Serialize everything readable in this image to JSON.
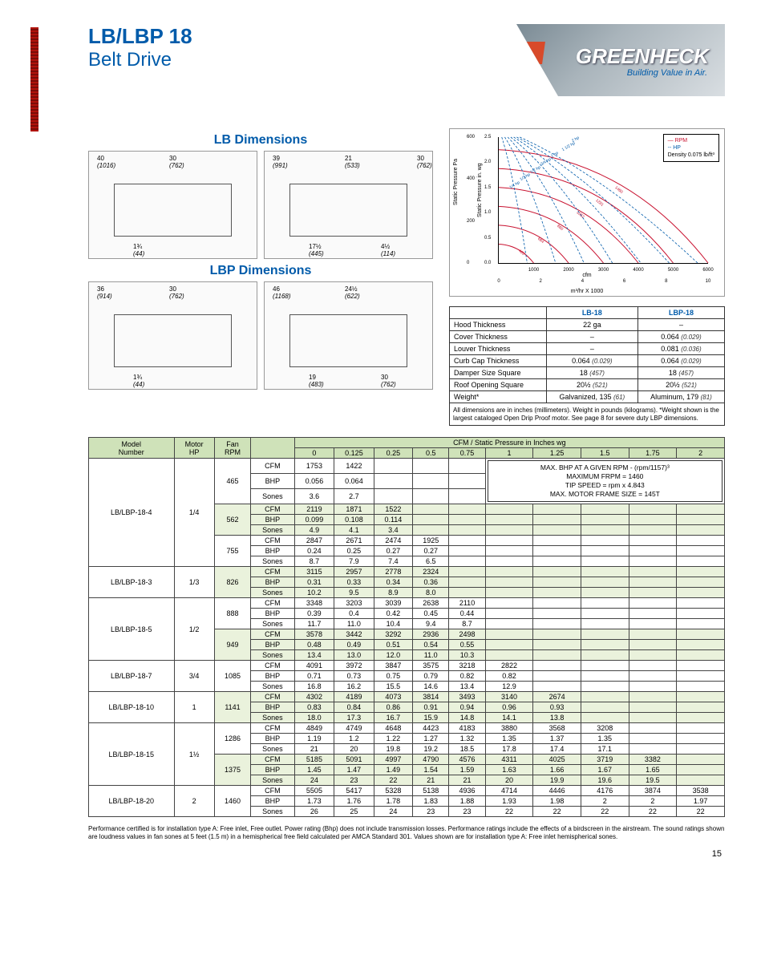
{
  "header": {
    "model": "LB/LBP 18",
    "drive": "Belt Drive",
    "brand": "GREENHECK",
    "tagline": "Building Value in Air."
  },
  "dim_titles": {
    "lb": "LB Dimensions",
    "lbp": "LBP Dimensions"
  },
  "lb_dims": {
    "left": [
      {
        "v": "40",
        "mm": "(1016)"
      },
      {
        "v": "1¾",
        "mm": "(44)"
      },
      {
        "v": "30",
        "mm": "(762)"
      }
    ],
    "right": [
      {
        "v": "39",
        "mm": "(991)"
      },
      {
        "v": "17½",
        "mm": "(445)"
      },
      {
        "v": "21",
        "mm": "(533)"
      },
      {
        "v": "4½",
        "mm": "(114)"
      },
      {
        "v": "30",
        "mm": "(762)"
      }
    ]
  },
  "lbp_dims": {
    "left": [
      {
        "v": "36",
        "mm": "(914)"
      },
      {
        "v": "1¾",
        "mm": "(44)"
      },
      {
        "v": "30",
        "mm": "(762)"
      }
    ],
    "right": [
      {
        "v": "46",
        "mm": "(1168)"
      },
      {
        "v": "19",
        "mm": "(483)"
      },
      {
        "v": "24½",
        "mm": "(622)"
      },
      {
        "v": "30",
        "mm": "(762)"
      }
    ]
  },
  "chart": {
    "legend": [
      "RPM",
      "HP",
      "Density 0.075 lb/ft³"
    ],
    "y1_label": "Static Pressure Pa",
    "y2_label": "Static Pressure in. wg",
    "x_label_top": "cfm",
    "x_label_bot": "m³/hr X 1000",
    "y_ticks_pa": [
      "0",
      "200",
      "400",
      "600"
    ],
    "y_ticks_wg": [
      "0.0",
      "0.5",
      "1.0",
      "1.5",
      "2.0",
      "2.5"
    ],
    "x_ticks_cfm": [
      "1000",
      "2000",
      "3000",
      "4000",
      "5000",
      "6000"
    ],
    "x_ticks_m3": [
      "0",
      "2",
      "4",
      "6",
      "8",
      "10"
    ],
    "hp_curves": [
      "2 hp",
      "1 1/2 hp",
      "1 hp",
      "3/4 hp",
      "1/2 hp",
      "1/3 hp",
      "1/4 hp"
    ],
    "rpm_curves": [
      "1460",
      "1281",
      "1062",
      "860",
      "664",
      "465"
    ],
    "series_colors": {
      "rpm": "#c8102e",
      "hp": "#005baa"
    }
  },
  "spec": {
    "head": [
      "",
      "LB-18",
      "LBP-18"
    ],
    "rows": [
      [
        "Hood Thickness",
        "22 ga",
        "–"
      ],
      [
        "Cover Thickness",
        "–",
        "0.064 (0.029)"
      ],
      [
        "Louver Thickness",
        "–",
        "0.081 (0.036)"
      ],
      [
        "Curb Cap Thickness",
        "0.064 (0.029)",
        "0.064 (0.029)"
      ],
      [
        "Damper Size Square",
        "18 (457)",
        "18 (457)"
      ],
      [
        "Roof Opening Square",
        "20½ (521)",
        "20½ (521)"
      ],
      [
        "Weight*",
        "Galvanized, 135 (61)",
        "Aluminum, 179 (81)"
      ]
    ],
    "note": "All dimensions are in inches (millimeters). Weight in pounds (kilograms). *Weight shown is the largest cataloged Open Drip Proof motor. See page 8 for severe duty LBP dimensions."
  },
  "perf": {
    "group_header": "CFM / Static Pressure in Inches wg",
    "cols": [
      "Model Number",
      "Motor HP",
      "Fan RPM",
      "",
      "0",
      "0.125",
      "0.25",
      "0.5",
      "0.75",
      "1",
      "1.25",
      "1.5",
      "1.75",
      "2"
    ],
    "infobox": [
      "MAX. BHP AT A GIVEN RPM - (rpm/1157)³",
      "MAXIMUM FRPM = 1460",
      "TIP SPEED = rpm x 4.843",
      "MAX. MOTOR FRAME SIZE = 145T"
    ],
    "models": [
      {
        "name": "LB/LBP-18-4",
        "hp": "1/4",
        "shade": false,
        "rpms": [
          {
            "rpm": "465",
            "rows": [
              [
                "CFM",
                "1753",
                "1422",
                "",
                "",
                "",
                "",
                "",
                "",
                "",
                ""
              ],
              [
                "BHP",
                "0.056",
                "0.064",
                "",
                "",
                "",
                "",
                "",
                "",
                "",
                ""
              ],
              [
                "Sones",
                "3.6",
                "2.7",
                "",
                "",
                "",
                "",
                "",
                "",
                "",
                ""
              ]
            ]
          },
          {
            "rpm": "562",
            "sh": true,
            "rows": [
              [
                "CFM",
                "2119",
                "1871",
                "1522",
                "",
                "",
                "",
                "",
                "",
                "",
                ""
              ],
              [
                "BHP",
                "0.099",
                "0.108",
                "0.114",
                "",
                "",
                "",
                "",
                "",
                "",
                ""
              ],
              [
                "Sones",
                "4.9",
                "4.1",
                "3.4",
                "",
                "",
                "",
                "",
                "",
                "",
                ""
              ]
            ]
          },
          {
            "rpm": "755",
            "rows": [
              [
                "CFM",
                "2847",
                "2671",
                "2474",
                "1925",
                "",
                "",
                "",
                "",
                "",
                ""
              ],
              [
                "BHP",
                "0.24",
                "0.25",
                "0.27",
                "0.27",
                "",
                "",
                "",
                "",
                "",
                ""
              ],
              [
                "Sones",
                "8.7",
                "7.9",
                "7.4",
                "6.5",
                "",
                "",
                "",
                "",
                "",
                ""
              ]
            ]
          }
        ]
      },
      {
        "name": "LB/LBP-18-3",
        "hp": "1/3",
        "shade": true,
        "rpms": [
          {
            "rpm": "826",
            "rows": [
              [
                "CFM",
                "3115",
                "2957",
                "2778",
                "2324",
                "",
                "",
                "",
                "",
                "",
                ""
              ],
              [
                "BHP",
                "0.31",
                "0.33",
                "0.34",
                "0.36",
                "",
                "",
                "",
                "",
                "",
                ""
              ],
              [
                "Sones",
                "10.2",
                "9.5",
                "8.9",
                "8.0",
                "",
                "",
                "",
                "",
                "",
                ""
              ]
            ]
          }
        ]
      },
      {
        "name": "LB/LBP-18-5",
        "hp": "1/2",
        "shade": false,
        "rpms": [
          {
            "rpm": "888",
            "rows": [
              [
                "CFM",
                "3348",
                "3203",
                "3039",
                "2638",
                "2110",
                "",
                "",
                "",
                "",
                ""
              ],
              [
                "BHP",
                "0.39",
                "0.4",
                "0.42",
                "0.45",
                "0.44",
                "",
                "",
                "",
                "",
                ""
              ],
              [
                "Sones",
                "11.7",
                "11.0",
                "10.4",
                "9.4",
                "8.7",
                "",
                "",
                "",
                "",
                ""
              ]
            ]
          },
          {
            "rpm": "949",
            "sh": true,
            "rows": [
              [
                "CFM",
                "3578",
                "3442",
                "3292",
                "2936",
                "2498",
                "",
                "",
                "",
                "",
                ""
              ],
              [
                "BHP",
                "0.48",
                "0.49",
                "0.51",
                "0.54",
                "0.55",
                "",
                "",
                "",
                "",
                ""
              ],
              [
                "Sones",
                "13.4",
                "13.0",
                "12.0",
                "11.0",
                "10.3",
                "",
                "",
                "",
                "",
                ""
              ]
            ]
          }
        ]
      },
      {
        "name": "LB/LBP-18-7",
        "hp": "3/4",
        "shade": false,
        "rpms": [
          {
            "rpm": "1085",
            "rows": [
              [
                "CFM",
                "4091",
                "3972",
                "3847",
                "3575",
                "3218",
                "2822",
                "",
                "",
                "",
                ""
              ],
              [
                "BHP",
                "0.71",
                "0.73",
                "0.75",
                "0.79",
                "0.82",
                "0.82",
                "",
                "",
                "",
                ""
              ],
              [
                "Sones",
                "16.8",
                "16.2",
                "15.5",
                "14.6",
                "13.4",
                "12.9",
                "",
                "",
                "",
                ""
              ]
            ]
          }
        ]
      },
      {
        "name": "LB/LBP-18-10",
        "hp": "1",
        "shade": true,
        "rpms": [
          {
            "rpm": "1141",
            "rows": [
              [
                "CFM",
                "4302",
                "4189",
                "4073",
                "3814",
                "3493",
                "3140",
                "2674",
                "",
                "",
                ""
              ],
              [
                "BHP",
                "0.83",
                "0.84",
                "0.86",
                "0.91",
                "0.94",
                "0.96",
                "0.93",
                "",
                "",
                ""
              ],
              [
                "Sones",
                "18.0",
                "17.3",
                "16.7",
                "15.9",
                "14.8",
                "14.1",
                "13.8",
                "",
                "",
                ""
              ]
            ]
          }
        ]
      },
      {
        "name": "LB/LBP-18-15",
        "hp": "1½",
        "shade": false,
        "rpms": [
          {
            "rpm": "1286",
            "rows": [
              [
                "CFM",
                "4849",
                "4749",
                "4648",
                "4423",
                "4183",
                "3880",
                "3568",
                "3208",
                "",
                ""
              ],
              [
                "BHP",
                "1.19",
                "1.2",
                "1.22",
                "1.27",
                "1.32",
                "1.35",
                "1.37",
                "1.35",
                "",
                ""
              ],
              [
                "Sones",
                "21",
                "20",
                "19.8",
                "19.2",
                "18.5",
                "17.8",
                "17.4",
                "17.1",
                "",
                ""
              ]
            ]
          },
          {
            "rpm": "1375",
            "sh": true,
            "rows": [
              [
                "CFM",
                "5185",
                "5091",
                "4997",
                "4790",
                "4576",
                "4311",
                "4025",
                "3719",
                "3382",
                ""
              ],
              [
                "BHP",
                "1.45",
                "1.47",
                "1.49",
                "1.54",
                "1.59",
                "1.63",
                "1.66",
                "1.67",
                "1.65",
                ""
              ],
              [
                "Sones",
                "24",
                "23",
                "22",
                "21",
                "21",
                "20",
                "19.9",
                "19.6",
                "19.5",
                ""
              ]
            ]
          }
        ]
      },
      {
        "name": "LB/LBP-18-20",
        "hp": "2",
        "shade": false,
        "rpms": [
          {
            "rpm": "1460",
            "rows": [
              [
                "CFM",
                "5505",
                "5417",
                "5328",
                "5138",
                "4936",
                "4714",
                "4446",
                "4176",
                "3874",
                "3538"
              ],
              [
                "BHP",
                "1.73",
                "1.76",
                "1.78",
                "1.83",
                "1.88",
                "1.93",
                "1.98",
                "2",
                "2",
                "1.97"
              ],
              [
                "Sones",
                "26",
                "25",
                "24",
                "23",
                "23",
                "22",
                "22",
                "22",
                "22",
                "22"
              ]
            ]
          }
        ]
      }
    ]
  },
  "footer": "Performance certified is for installation type A: Free inlet, Free outlet. Power rating (Bhp) does not include transmission losses. Performance ratings include the effects of a birdscreen in the airstream. The sound ratings shown are loudness values in fan sones at 5 feet (1.5 m) in a hemispherical free field calculated per AMCA Standard 301. Values shown are for installation type A: Free inlet hemispherical sones.",
  "page": "15"
}
